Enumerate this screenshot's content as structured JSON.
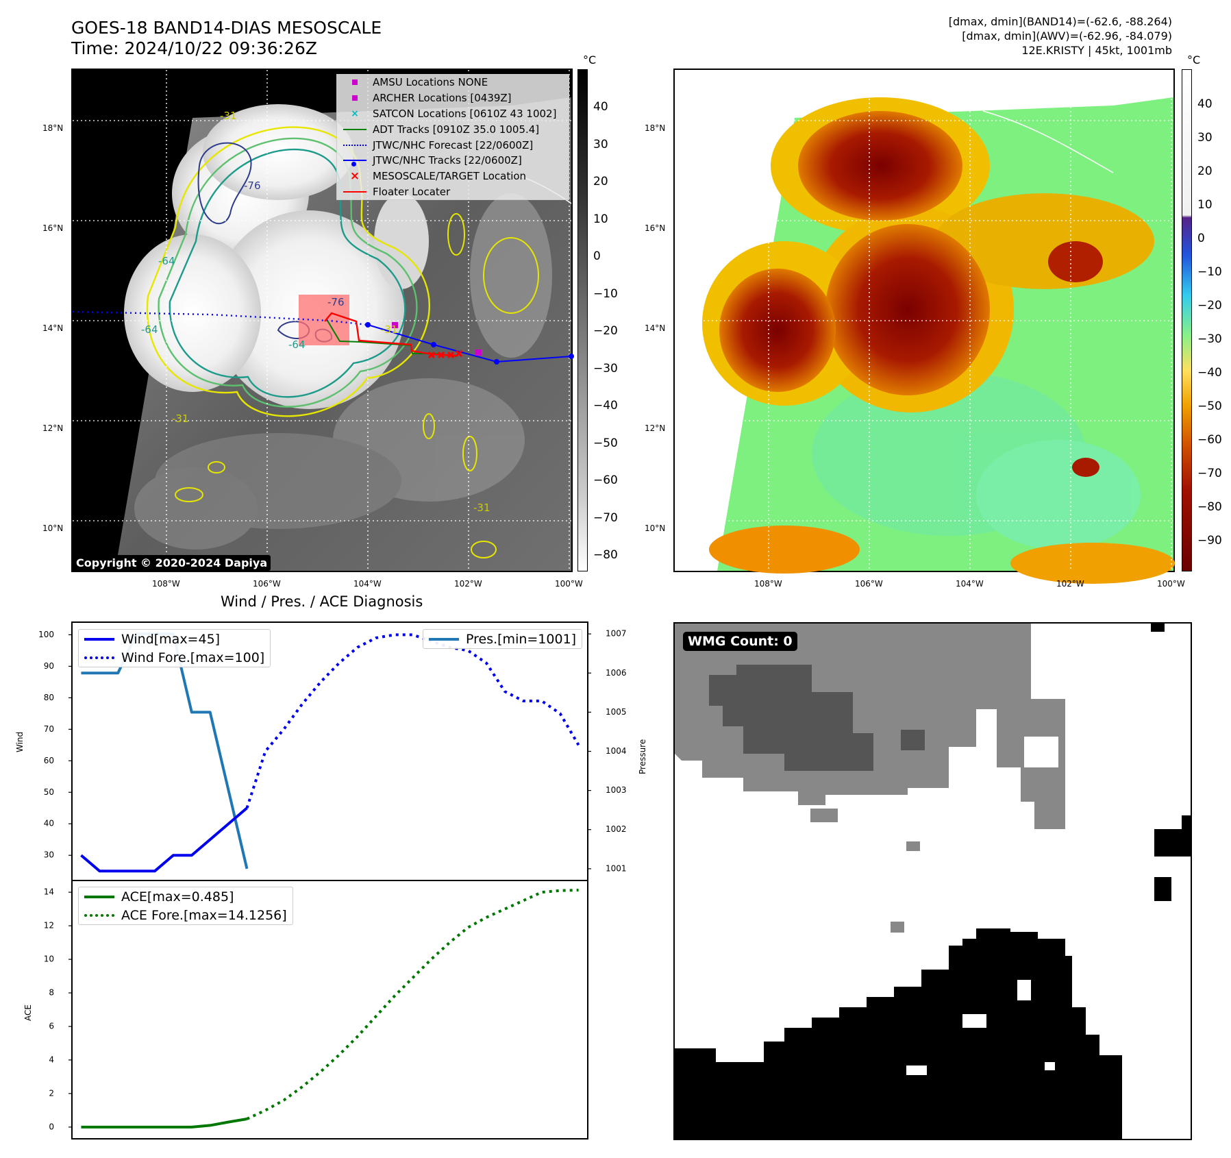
{
  "header": {
    "title_line1": "GOES-18 BAND14-DIAS MESOSCALE",
    "title_line2": "Time: 2024/10/22 09:36:26Z",
    "info_line1": "[dmax, dmin](BAND14)=(-62.6, -88.264)",
    "info_line2": "[dmax, dmin](AWV)=(-62.96, -84.079)",
    "info_line3": "12E.KRISTY | 45kt, 1001mb"
  },
  "map_axes": {
    "lat_labels": [
      "18°N",
      "16°N",
      "14°N",
      "12°N",
      "10°N"
    ],
    "lon_labels": [
      "108°W",
      "106°W",
      "104°W",
      "102°W",
      "100°W"
    ]
  },
  "colorbar_left": {
    "unit": "°C",
    "ticks": [
      "40",
      "30",
      "20",
      "10",
      "0",
      "−10",
      "−20",
      "−30",
      "−40",
      "−50",
      "−60",
      "−70",
      "−80"
    ]
  },
  "colorbar_right": {
    "unit": "°C",
    "ticks": [
      "40",
      "30",
      "20",
      "10",
      "0",
      "−10",
      "−20",
      "−30",
      "−40",
      "−50",
      "−60",
      "−70",
      "−80",
      "−90"
    ]
  },
  "map_legend": {
    "items": [
      {
        "label": "AMSU Locations NONE",
        "symbol": "square",
        "color": "#cc00cc"
      },
      {
        "label": "ARCHER Locations [0439Z]",
        "symbol": "square",
        "color": "#cc00cc"
      },
      {
        "label": "SATCON Locations [0610Z 43 1002]",
        "symbol": "x",
        "color": "#00bbbb"
      },
      {
        "label": "ADT Tracks [0910Z 35.0 1005.4]",
        "symbol": "line",
        "color": "#008000"
      },
      {
        "label": "JTWC/NHC Forecast [22/0600Z]",
        "symbol": "dotted",
        "color": "#0000ff"
      },
      {
        "label": "JTWC/NHC Tracks [22/0600Z]",
        "symbol": "line-dot",
        "color": "#0000ff"
      },
      {
        "label": "MESOSCALE/TARGET Location",
        "symbol": "x",
        "color": "#ff0000"
      },
      {
        "label": "Floater Locater",
        "symbol": "line",
        "color": "#ff0000"
      }
    ]
  },
  "contour_labels": [
    "-31",
    "-31",
    "-64",
    "-64",
    "-76",
    "-76",
    "-64",
    "-31",
    "-31"
  ],
  "copyright": "Copyright © 2020-2024 Dapiya",
  "wmg_label": "WMG Count: 0",
  "chart_data": [
    {
      "type": "line",
      "title": "Wind / Pres. / ACE Diagnosis",
      "ylabel": "Wind",
      "y2label": "Pressure",
      "ylim": [
        22,
        104
      ],
      "y2lim": [
        1000.7,
        1007.3
      ],
      "yticks": [
        30,
        40,
        50,
        60,
        70,
        80,
        90,
        100
      ],
      "y2ticks": [
        1001,
        1002,
        1003,
        1004,
        1005,
        1006,
        1007
      ],
      "xlim": [
        -0.5,
        27.5
      ],
      "series": [
        {
          "name": "Wind[max=45]",
          "axis": "left",
          "style": "solid",
          "color": "#0000ee",
          "x": [
            0,
            1,
            2,
            3,
            4,
            5,
            6,
            7,
            8,
            9
          ],
          "values": [
            30,
            25,
            25,
            25,
            25,
            30,
            30,
            35,
            40,
            45
          ]
        },
        {
          "name": "Wind Fore.[max=100]",
          "axis": "left",
          "style": "dotted",
          "color": "#0000ee",
          "x": [
            9,
            10,
            11,
            12,
            13,
            14,
            15,
            16,
            17,
            18,
            19,
            20,
            21,
            22,
            23,
            24,
            25,
            26,
            27
          ],
          "values": [
            45,
            63,
            70,
            78,
            85,
            91,
            96,
            99,
            100,
            100,
            98,
            96,
            95,
            91,
            82,
            79,
            79,
            75,
            65
          ]
        },
        {
          "name": "Pres.[min=1001]",
          "axis": "right",
          "style": "solid",
          "color": "#1f77b4",
          "x": [
            0,
            1,
            2,
            3,
            4,
            5,
            6,
            7,
            8,
            9
          ],
          "values": [
            1006,
            1006,
            1006,
            1007,
            1007,
            1007,
            1005,
            1005,
            1003,
            1001
          ]
        }
      ]
    },
    {
      "type": "line",
      "ylabel": "ACE",
      "ylim": [
        -0.7,
        14.7
      ],
      "yticks": [
        0,
        2,
        4,
        6,
        8,
        10,
        12,
        14
      ],
      "xlim": [
        -0.5,
        27.5
      ],
      "series": [
        {
          "name": "ACE[max=0.485]",
          "style": "solid",
          "color": "#007700",
          "x": [
            0,
            1,
            2,
            3,
            4,
            5,
            6,
            7,
            8,
            9
          ],
          "values": [
            0,
            0,
            0,
            0,
            0,
            0,
            0,
            0.1,
            0.3,
            0.485
          ]
        },
        {
          "name": "ACE Fore.[max=14.1256]",
          "style": "dotted",
          "color": "#007700",
          "x": [
            9,
            10,
            11,
            12,
            13,
            14,
            15,
            16,
            17,
            18,
            19,
            20,
            21,
            22,
            23,
            24,
            25,
            26,
            27
          ],
          "values": [
            0.485,
            1.0,
            1.6,
            2.4,
            3.3,
            4.3,
            5.4,
            6.6,
            7.8,
            8.9,
            10.0,
            11.0,
            11.9,
            12.5,
            13.0,
            13.5,
            14.0,
            14.1,
            14.1256
          ]
        }
      ]
    }
  ]
}
